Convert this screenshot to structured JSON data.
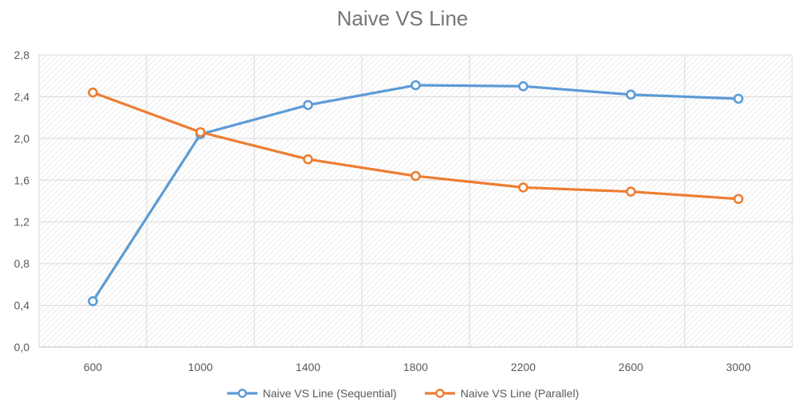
{
  "chart_data": {
    "type": "line",
    "title": "Naive VS Line",
    "xlabel": "",
    "ylabel": "",
    "categories": [
      "600",
      "1000",
      "1400",
      "1800",
      "2200",
      "2600",
      "3000"
    ],
    "series": [
      {
        "name": "Naive VS Line (Sequential)",
        "color": "#5B9BD5",
        "values": [
          0.44,
          2.04,
          2.32,
          2.51,
          2.5,
          2.42,
          2.38
        ]
      },
      {
        "name": "Naive VS Line (Parallel)",
        "color": "#ED7D31",
        "values": [
          2.44,
          2.06,
          1.8,
          1.64,
          1.53,
          1.49,
          1.42
        ]
      }
    ],
    "ylim": [
      0,
      2.8
    ],
    "yticks": [
      "0,0",
      "0,4",
      "0,8",
      "1,2",
      "1,6",
      "2,0",
      "2,4",
      "2,8"
    ],
    "grid": true,
    "legend_position": "bottom"
  }
}
